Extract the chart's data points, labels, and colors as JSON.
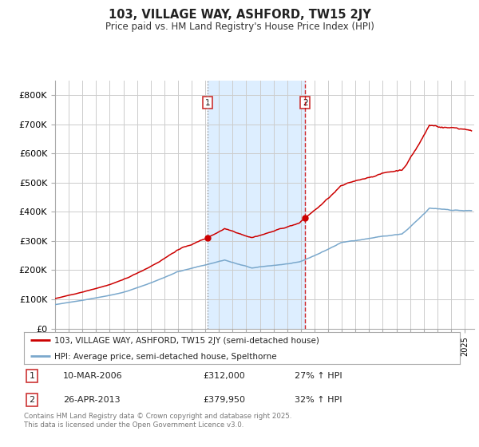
{
  "title": "103, VILLAGE WAY, ASHFORD, TW15 2JY",
  "subtitle": "Price paid vs. HM Land Registry's House Price Index (HPI)",
  "footer": "Contains HM Land Registry data © Crown copyright and database right 2025.\nThis data is licensed under the Open Government Licence v3.0.",
  "legend_line1": "103, VILLAGE WAY, ASHFORD, TW15 2JY (semi-detached house)",
  "legend_line2": "HPI: Average price, semi-detached house, Spelthorne",
  "transaction1_label": "1",
  "transaction1_date": "10-MAR-2006",
  "transaction1_price": "£312,000",
  "transaction1_hpi": "27% ↑ HPI",
  "transaction2_label": "2",
  "transaction2_date": "26-APR-2013",
  "transaction2_price": "£379,950",
  "transaction2_hpi": "32% ↑ HPI",
  "red_color": "#cc0000",
  "blue_color": "#7aa8cc",
  "shading_color": "#ddeeff",
  "grid_color": "#cccccc",
  "bg_color": "#ffffff",
  "ylim": [
    0,
    850000
  ],
  "yticks": [
    0,
    100000,
    200000,
    300000,
    400000,
    500000,
    600000,
    700000,
    800000
  ],
  "ytick_labels": [
    "£0",
    "£100K",
    "£200K",
    "£300K",
    "£400K",
    "£500K",
    "£600K",
    "£700K",
    "£800K"
  ],
  "marker1_x": 2006.19,
  "marker1_y": 312000,
  "marker2_x": 2013.32,
  "marker2_y": 379950,
  "shade_x1": 2006.19,
  "shade_x2": 2013.32,
  "vline_x": 2013.32,
  "xlim_left": 1995.0,
  "xlim_right": 2025.7
}
